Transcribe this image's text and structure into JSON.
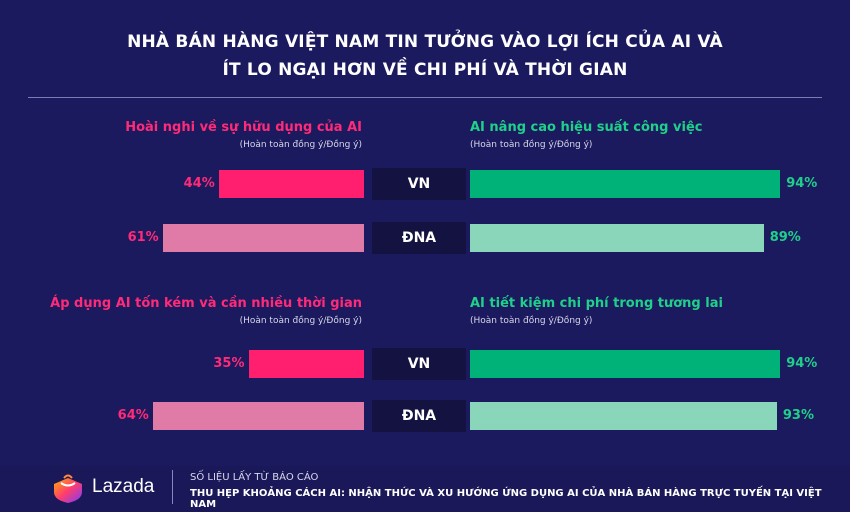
{
  "title_line1": "NHÀ BÁN HÀNG VIỆT NAM TIN TƯỞNG VÀO LỢI ÍCH CỦA AI VÀ",
  "title_line2": "ÍT LO NGẠI HƠN VỀ CHI PHÍ VÀ THỜI GIAN",
  "colors": {
    "background": "#1c1a5e",
    "left_vn": "#ff1f6e",
    "left_dna": "#e07aa6",
    "left_text": "#ff2a78",
    "right_vn": "#00b277",
    "right_dna": "#8ad6ba",
    "right_text": "#1fd08a"
  },
  "chart_data": [
    {
      "type": "bar",
      "orientation": "horizontal-left",
      "title": "Hoài nghi về sự hữu dụng của AI",
      "subtitle": "(Hoàn toàn đồng ý/Đồng ý)",
      "categories": [
        "VN",
        "ĐNA"
      ],
      "values": [
        44,
        61
      ],
      "labels": [
        "44%",
        "61%"
      ],
      "unit": "%"
    },
    {
      "type": "bar",
      "orientation": "horizontal-right",
      "title": "AI nâng cao hiệu suất công việc",
      "subtitle": "(Hoàn toàn đồng ý/Đồng ý)",
      "categories": [
        "VN",
        "ĐNA"
      ],
      "values": [
        94,
        89
      ],
      "labels": [
        "94%",
        "89%"
      ],
      "unit": "%"
    },
    {
      "type": "bar",
      "orientation": "horizontal-left",
      "title": "Áp dụng AI tốn kém và cần nhiều thời gian",
      "subtitle": "(Hoàn toàn đồng ý/Đồng ý)",
      "categories": [
        "VN",
        "ĐNA"
      ],
      "values": [
        35,
        64
      ],
      "labels": [
        "35%",
        "64%"
      ],
      "unit": "%"
    },
    {
      "type": "bar",
      "orientation": "horizontal-right",
      "title": "AI tiết kiệm chi phí trong tương lai",
      "subtitle": "(Hoàn toàn đồng ý/Đồng ý)",
      "categories": [
        "VN",
        "ĐNA"
      ],
      "values": [
        94,
        93
      ],
      "labels": [
        "94%",
        "93%"
      ],
      "unit": "%"
    }
  ],
  "footer": {
    "brand": "Lazada",
    "logo_icon": "lazada-heart-bag-icon",
    "source_label": "SỐ LIỆU LẤY TỪ BÁO CÁO",
    "source_title": "THU HẸP KHOẢNG CÁCH AI: NHẬN THỨC VÀ XU HƯỚNG ỨNG DỤNG AI CỦA NHÀ BÁN HÀNG TRỰC TUYẾN TẠI VIỆT NAM"
  }
}
